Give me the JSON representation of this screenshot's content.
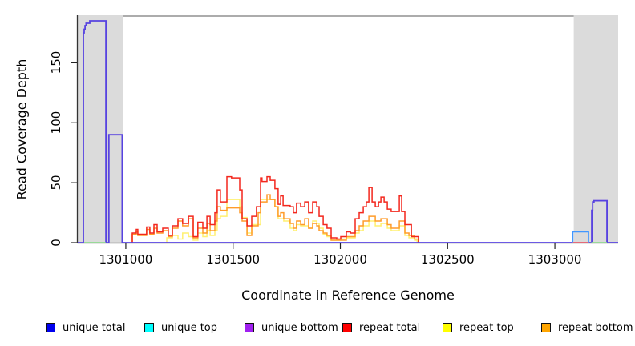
{
  "chart_data": {
    "type": "line",
    "subtype": "step-coverage",
    "title": "",
    "xlabel": "Coordinate in Reference Genome",
    "ylabel": "Read Coverage Depth",
    "xlim": [
      1300776,
      1303295
    ],
    "ylim": [
      0,
      189
    ],
    "x_ticks": [
      1301000,
      1301500,
      1302000,
      1302500,
      1303000
    ],
    "y_ticks": [
      0,
      50,
      100,
      150
    ],
    "grid": false,
    "legend_position": "bottom",
    "plot_background": "#ffffff",
    "shaded_region_color": "#dbdbdb",
    "shaded_regions": [
      {
        "x1": 1300776,
        "x2": 1300987
      },
      {
        "x1": 1303088,
        "x2": 1303295
      }
    ],
    "series": [
      {
        "key": "unique_total",
        "label": "unique total",
        "swatch": "#0000EE",
        "stroke": "#5743E0",
        "points": [
          [
            1300776,
            0
          ],
          [
            1300802,
            175
          ],
          [
            1300806,
            178
          ],
          [
            1300810,
            181
          ],
          [
            1300815,
            183
          ],
          [
            1300832,
            185
          ],
          [
            1300907,
            0
          ],
          [
            1300921,
            90
          ],
          [
            1300983,
            0
          ],
          [
            1303172,
            27
          ],
          [
            1303176,
            34
          ],
          [
            1303182,
            35
          ],
          [
            1303243,
            0
          ],
          [
            1303295,
            0
          ]
        ]
      },
      {
        "key": "unique_top",
        "label": "unique top",
        "swatch": "#00FFFF",
        "stroke": "#4197FF",
        "points": [
          [
            1303082,
            0
          ],
          [
            1303084,
            9
          ],
          [
            1303157,
            0
          ],
          [
            1303158,
            0
          ]
        ]
      },
      {
        "key": "unique_bottom",
        "label": "unique bottom",
        "swatch": "#A020F0",
        "stroke": "#7B3BE8",
        "points": [
          [
            1303170,
            0
          ],
          [
            1303172,
            27
          ],
          [
            1303176,
            34
          ],
          [
            1303182,
            35
          ],
          [
            1303243,
            0
          ],
          [
            1303244,
            0
          ]
        ]
      },
      {
        "key": "repeat_total",
        "label": "repeat total",
        "swatch": "#FF0000",
        "stroke": "#F3271D",
        "points": [
          [
            1301028,
            0
          ],
          [
            1301030,
            8
          ],
          [
            1301049,
            11
          ],
          [
            1301056,
            7
          ],
          [
            1301097,
            13
          ],
          [
            1301112,
            8
          ],
          [
            1301131,
            15
          ],
          [
            1301146,
            9
          ],
          [
            1301172,
            12
          ],
          [
            1301198,
            6
          ],
          [
            1301217,
            14
          ],
          [
            1301243,
            20
          ],
          [
            1301265,
            16
          ],
          [
            1301292,
            22
          ],
          [
            1301314,
            5
          ],
          [
            1301336,
            17
          ],
          [
            1301359,
            12
          ],
          [
            1301378,
            22
          ],
          [
            1301393,
            15
          ],
          [
            1301415,
            25
          ],
          [
            1301426,
            44
          ],
          [
            1301441,
            34
          ],
          [
            1301471,
            55
          ],
          [
            1301493,
            54
          ],
          [
            1301531,
            44
          ],
          [
            1301542,
            20
          ],
          [
            1301565,
            14
          ],
          [
            1301587,
            22
          ],
          [
            1301609,
            30
          ],
          [
            1301628,
            54
          ],
          [
            1301635,
            51
          ],
          [
            1301658,
            55
          ],
          [
            1301673,
            52
          ],
          [
            1301695,
            45
          ],
          [
            1301710,
            32
          ],
          [
            1301722,
            39
          ],
          [
            1301733,
            31
          ],
          [
            1301766,
            30
          ],
          [
            1301781,
            25
          ],
          [
            1301796,
            33
          ],
          [
            1301815,
            30
          ],
          [
            1301834,
            34
          ],
          [
            1301852,
            25
          ],
          [
            1301871,
            34
          ],
          [
            1301890,
            30
          ],
          [
            1301901,
            22
          ],
          [
            1301920,
            15
          ],
          [
            1301938,
            12
          ],
          [
            1301957,
            4
          ],
          [
            1301983,
            3
          ],
          [
            1302002,
            5
          ],
          [
            1302028,
            9
          ],
          [
            1302047,
            8
          ],
          [
            1302069,
            20
          ],
          [
            1302088,
            25
          ],
          [
            1302107,
            30
          ],
          [
            1302121,
            34
          ],
          [
            1302133,
            46
          ],
          [
            1302148,
            34
          ],
          [
            1302163,
            30
          ],
          [
            1302178,
            34
          ],
          [
            1302189,
            38
          ],
          [
            1302204,
            34
          ],
          [
            1302219,
            28
          ],
          [
            1302237,
            26
          ],
          [
            1302256,
            26
          ],
          [
            1302275,
            39
          ],
          [
            1302286,
            26
          ],
          [
            1302301,
            15
          ],
          [
            1302320,
            15
          ],
          [
            1302331,
            5
          ],
          [
            1302346,
            5
          ],
          [
            1302364,
            0
          ]
        ]
      },
      {
        "key": "repeat_top",
        "label": "repeat top",
        "swatch": "#FFFF00",
        "stroke": "#FFF070",
        "points": [
          [
            1301188,
            0
          ],
          [
            1301191,
            4
          ],
          [
            1301217,
            6
          ],
          [
            1301243,
            3
          ],
          [
            1301265,
            8
          ],
          [
            1301292,
            5
          ],
          [
            1301314,
            2
          ],
          [
            1301336,
            8
          ],
          [
            1301359,
            5
          ],
          [
            1301378,
            10
          ],
          [
            1301393,
            6
          ],
          [
            1301415,
            10
          ],
          [
            1301426,
            20
          ],
          [
            1301441,
            22
          ],
          [
            1301471,
            36
          ],
          [
            1301531,
            30
          ],
          [
            1301542,
            21
          ],
          [
            1301565,
            8
          ],
          [
            1301587,
            15
          ],
          [
            1301628,
            36
          ],
          [
            1301695,
            30
          ],
          [
            1301710,
            20
          ],
          [
            1301736,
            18
          ],
          [
            1301766,
            12
          ],
          [
            1301781,
            10
          ],
          [
            1301796,
            15
          ],
          [
            1301815,
            14
          ],
          [
            1301834,
            14
          ],
          [
            1301852,
            12
          ],
          [
            1301871,
            18
          ],
          [
            1301890,
            16
          ],
          [
            1301901,
            12
          ],
          [
            1301920,
            7
          ],
          [
            1301938,
            5
          ],
          [
            1301957,
            2
          ],
          [
            1302002,
            3
          ],
          [
            1302028,
            4
          ],
          [
            1302069,
            8
          ],
          [
            1302088,
            10
          ],
          [
            1302107,
            14
          ],
          [
            1302133,
            18
          ],
          [
            1302163,
            14
          ],
          [
            1302189,
            16
          ],
          [
            1302219,
            12
          ],
          [
            1302237,
            10
          ],
          [
            1302275,
            14
          ],
          [
            1302301,
            6
          ],
          [
            1302320,
            4
          ],
          [
            1302346,
            2
          ],
          [
            1302358,
            0
          ]
        ]
      },
      {
        "key": "repeat_bottom",
        "label": "repeat bottom",
        "swatch": "#FFA500",
        "stroke": "#FF9C2A",
        "points": [
          [
            1301028,
            0
          ],
          [
            1301030,
            7
          ],
          [
            1301049,
            9
          ],
          [
            1301056,
            6
          ],
          [
            1301097,
            11
          ],
          [
            1301112,
            7
          ],
          [
            1301131,
            12
          ],
          [
            1301146,
            8
          ],
          [
            1301172,
            10
          ],
          [
            1301198,
            5
          ],
          [
            1301217,
            12
          ],
          [
            1301243,
            18
          ],
          [
            1301265,
            14
          ],
          [
            1301292,
            20
          ],
          [
            1301314,
            4
          ],
          [
            1301336,
            12
          ],
          [
            1301359,
            8
          ],
          [
            1301378,
            16
          ],
          [
            1301393,
            10
          ],
          [
            1301415,
            18
          ],
          [
            1301426,
            30
          ],
          [
            1301441,
            27
          ],
          [
            1301471,
            29
          ],
          [
            1301531,
            25
          ],
          [
            1301542,
            18
          ],
          [
            1301565,
            6
          ],
          [
            1301587,
            14
          ],
          [
            1301617,
            25
          ],
          [
            1301628,
            34
          ],
          [
            1301658,
            40
          ],
          [
            1301673,
            36
          ],
          [
            1301695,
            30
          ],
          [
            1301710,
            22
          ],
          [
            1301722,
            25
          ],
          [
            1301736,
            20
          ],
          [
            1301766,
            16
          ],
          [
            1301781,
            12
          ],
          [
            1301796,
            18
          ],
          [
            1301815,
            15
          ],
          [
            1301834,
            20
          ],
          [
            1301852,
            12
          ],
          [
            1301871,
            16
          ],
          [
            1301890,
            14
          ],
          [
            1301901,
            10
          ],
          [
            1301920,
            8
          ],
          [
            1301938,
            6
          ],
          [
            1301957,
            2
          ],
          [
            1302002,
            2
          ],
          [
            1302028,
            5
          ],
          [
            1302069,
            10
          ],
          [
            1302088,
            14
          ],
          [
            1302107,
            18
          ],
          [
            1302133,
            22
          ],
          [
            1302163,
            18
          ],
          [
            1302189,
            20
          ],
          [
            1302219,
            15
          ],
          [
            1302237,
            12
          ],
          [
            1302275,
            18
          ],
          [
            1302301,
            8
          ],
          [
            1302320,
            6
          ],
          [
            1302346,
            3
          ],
          [
            1302364,
            0
          ]
        ]
      }
    ],
    "draw_order": [
      "unique_bottom",
      "repeat_top",
      "repeat_bottom",
      "repeat_total",
      "unique_total",
      "unique_top"
    ],
    "baseline_overlap_segments": [
      {
        "color": "#8FD98F",
        "x1": 1300806,
        "x2": 1300906
      },
      {
        "color": "#F56A6A",
        "x1": 1303084,
        "x2": 1303158
      },
      {
        "color": "#8FD98F",
        "x1": 1303170,
        "x2": 1303243
      }
    ]
  },
  "legend": {
    "items": [
      {
        "label": "unique total"
      },
      {
        "label": "unique top"
      },
      {
        "label": "unique bottom"
      },
      {
        "label": "repeat total"
      },
      {
        "label": "repeat top"
      },
      {
        "label": "repeat bottom"
      }
    ]
  }
}
